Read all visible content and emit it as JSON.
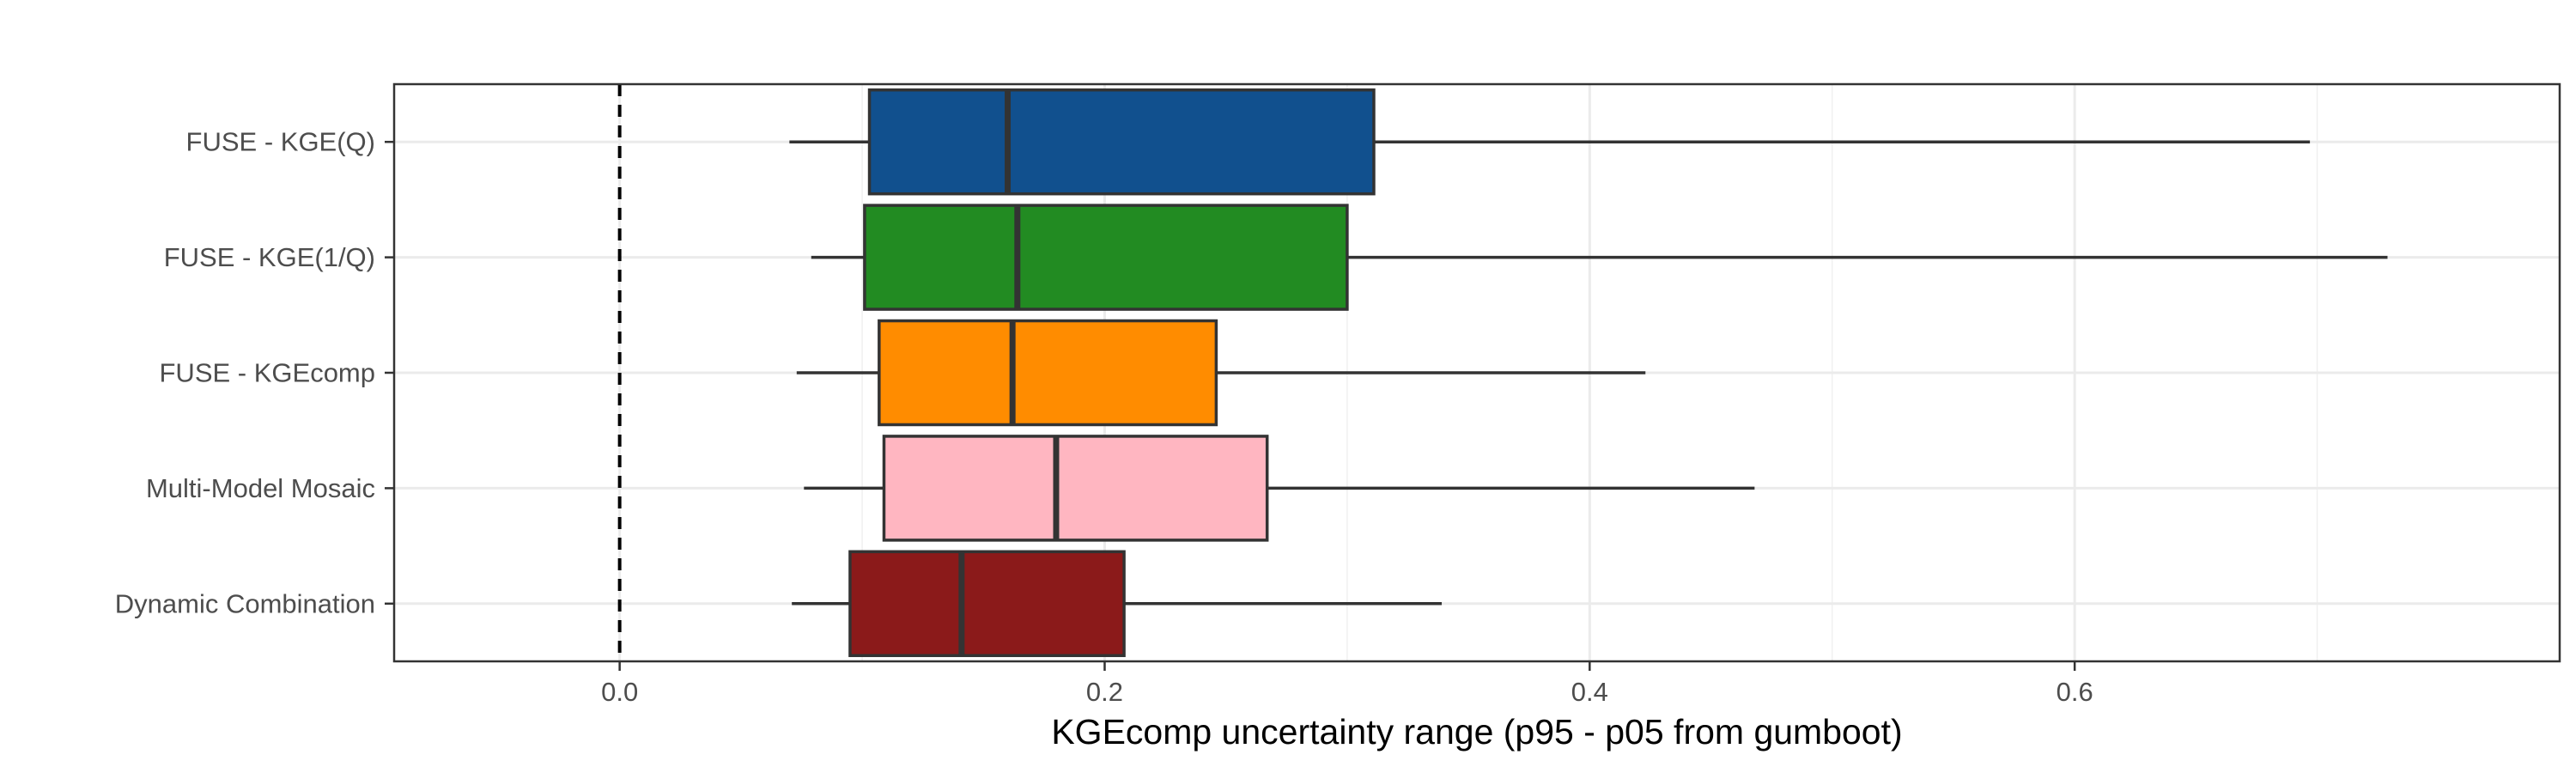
{
  "chart_data": {
    "type": "boxplot",
    "orientation": "horizontal",
    "title": "",
    "xlabel": "KGEcomp uncertainty range (p95 - p05 from gumboot)",
    "ylabel": "",
    "xlim": [
      -0.093,
      0.8
    ],
    "x_ticks": [
      0.0,
      0.2,
      0.4,
      0.6
    ],
    "x_tick_labels": [
      "0.0",
      "0.2",
      "0.4",
      "0.6"
    ],
    "reference_line": {
      "x": 0.0,
      "style": "dashed"
    },
    "grid": true,
    "theme": "bw",
    "categories": [
      "FUSE - KGE(Q)",
      "FUSE - KGE(1/Q)",
      "FUSE - KGEcomp",
      "Multi-Model Mosaic",
      "Dynamic Combination"
    ],
    "series": [
      {
        "category": "FUSE - KGE(Q)",
        "whisker_low": 0.07,
        "q1": 0.103,
        "median": 0.16,
        "q3": 0.311,
        "whisker_high": 0.697,
        "color": "#11508E"
      },
      {
        "category": "FUSE - KGE(1/Q)",
        "whisker_low": 0.079,
        "q1": 0.101,
        "median": 0.164,
        "q3": 0.3,
        "whisker_high": 0.729,
        "color": "#228B22"
      },
      {
        "category": "FUSE - KGEcomp",
        "whisker_low": 0.073,
        "q1": 0.107,
        "median": 0.162,
        "q3": 0.246,
        "whisker_high": 0.423,
        "color": "#FF8C00"
      },
      {
        "category": "Multi-Model Mosaic",
        "whisker_low": 0.076,
        "q1": 0.109,
        "median": 0.18,
        "q3": 0.267,
        "whisker_high": 0.468,
        "color": "#FFB6C1"
      },
      {
        "category": "Dynamic Combination",
        "whisker_low": 0.071,
        "q1": 0.095,
        "median": 0.141,
        "q3": 0.208,
        "whisker_high": 0.339,
        "color": "#8B1A1A"
      }
    ]
  }
}
